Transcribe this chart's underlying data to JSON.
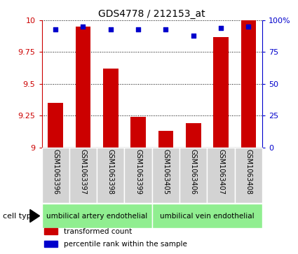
{
  "title": "GDS4778 / 212153_at",
  "samples": [
    "GSM1063396",
    "GSM1063397",
    "GSM1063398",
    "GSM1063399",
    "GSM1063405",
    "GSM1063406",
    "GSM1063407",
    "GSM1063408"
  ],
  "bar_values": [
    9.35,
    9.95,
    9.62,
    9.24,
    9.13,
    9.19,
    9.87,
    10.0
  ],
  "percentile_values": [
    93,
    95,
    93,
    93,
    93,
    88,
    94,
    95
  ],
  "ylim": [
    9.0,
    10.0
  ],
  "yticks_left": [
    9.0,
    9.25,
    9.5,
    9.75,
    10.0
  ],
  "yticks_left_labels": [
    "9",
    "9.25",
    "9.5",
    "9.75",
    "10"
  ],
  "yticks_right": [
    0,
    25,
    50,
    75,
    100
  ],
  "yticks_right_labels": [
    "0",
    "25",
    "50",
    "75",
    "100%"
  ],
  "bar_color": "#cc0000",
  "dot_color": "#0000cc",
  "cell_types": [
    {
      "label": "umbilical artery endothelial",
      "start": 0,
      "end": 4
    },
    {
      "label": "umbilical vein endothelial",
      "start": 4,
      "end": 8
    }
  ],
  "label_area_color": "#d3d3d3",
  "cell_type_color": "#90ee90",
  "legend_labels": [
    "transformed count",
    "percentile rank within the sample"
  ],
  "legend_colors": [
    "#cc0000",
    "#0000cc"
  ]
}
